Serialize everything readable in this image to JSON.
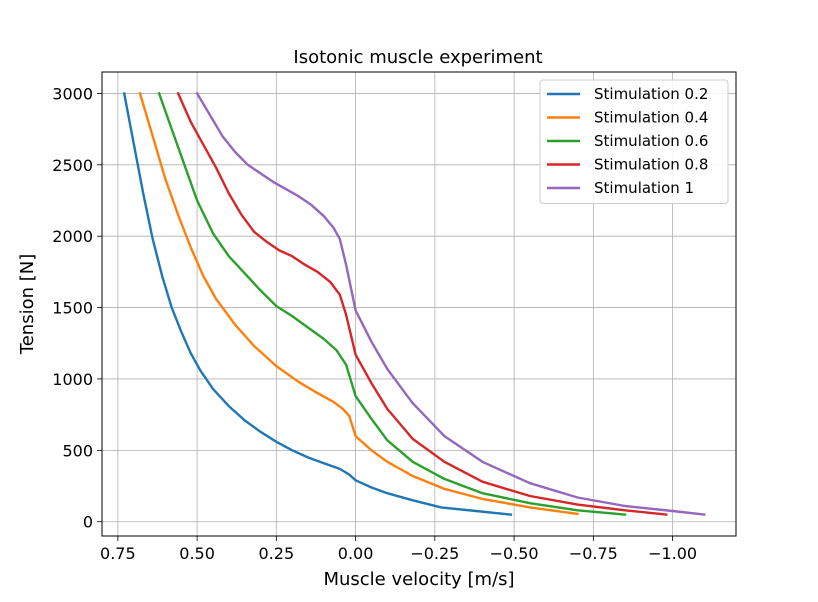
{
  "chart_data": {
    "type": "line",
    "title": "Isotonic muscle experiment",
    "xlabel": "Muscle velocity [m/s]",
    "ylabel": "Tension [N]",
    "xlim": [
      0.8,
      -1.2
    ],
    "x_inverted": true,
    "ylim": [
      -100,
      3150
    ],
    "xticks": [
      0.75,
      0.5,
      0.25,
      0.0,
      -0.25,
      -0.5,
      -0.75,
      -1.0
    ],
    "xtick_labels": [
      "0.75",
      "0.50",
      "0.25",
      "0.00",
      "−0.25",
      "−0.50",
      "−0.75",
      "−1.00"
    ],
    "yticks": [
      0,
      500,
      1000,
      1500,
      2000,
      2500,
      3000
    ],
    "ytick_labels": [
      "0",
      "500",
      "1000",
      "1500",
      "2000",
      "2500",
      "3000"
    ],
    "grid": true,
    "legend_position": "top-right",
    "series": [
      {
        "name": "Stimulation 0.2",
        "color": "#1f77b4",
        "x": [
          0.73,
          0.7,
          0.67,
          0.64,
          0.61,
          0.58,
          0.55,
          0.52,
          0.49,
          0.45,
          0.4,
          0.35,
          0.3,
          0.25,
          0.2,
          0.15,
          0.1,
          0.05,
          0.02,
          0.0,
          -0.05,
          -0.1,
          -0.18,
          -0.27,
          -0.38,
          -0.49
        ],
        "y": [
          3000,
          2650,
          2300,
          1980,
          1720,
          1500,
          1330,
          1180,
          1060,
          930,
          810,
          710,
          630,
          560,
          500,
          450,
          410,
          370,
          330,
          290,
          240,
          200,
          150,
          100,
          75,
          50
        ]
      },
      {
        "name": "Stimulation 0.4",
        "color": "#ff7f0e",
        "x": [
          0.68,
          0.64,
          0.6,
          0.56,
          0.52,
          0.48,
          0.44,
          0.38,
          0.32,
          0.25,
          0.18,
          0.12,
          0.07,
          0.04,
          0.02,
          0.0,
          -0.05,
          -0.1,
          -0.18,
          -0.28,
          -0.4,
          -0.55,
          -0.7
        ],
        "y": [
          3000,
          2700,
          2400,
          2150,
          1920,
          1720,
          1560,
          1380,
          1230,
          1090,
          980,
          900,
          840,
          790,
          740,
          600,
          500,
          420,
          320,
          230,
          160,
          100,
          55
        ]
      },
      {
        "name": "Stimulation 0.6",
        "color": "#2ca02c",
        "x": [
          0.62,
          0.58,
          0.54,
          0.5,
          0.45,
          0.4,
          0.35,
          0.3,
          0.25,
          0.2,
          0.15,
          0.1,
          0.06,
          0.03,
          0.0,
          -0.05,
          -0.1,
          -0.18,
          -0.28,
          -0.4,
          -0.55,
          -0.7,
          -0.85
        ],
        "y": [
          3000,
          2750,
          2500,
          2250,
          2020,
          1860,
          1740,
          1620,
          1510,
          1440,
          1360,
          1280,
          1200,
          1100,
          880,
          720,
          570,
          420,
          300,
          200,
          130,
          80,
          50
        ]
      },
      {
        "name": "Stimulation 0.8",
        "color": "#d62728",
        "x": [
          0.56,
          0.52,
          0.48,
          0.44,
          0.4,
          0.36,
          0.32,
          0.28,
          0.24,
          0.2,
          0.16,
          0.12,
          0.08,
          0.05,
          0.03,
          0.0,
          -0.05,
          -0.1,
          -0.18,
          -0.28,
          -0.4,
          -0.55,
          -0.7,
          -0.85,
          -0.98
        ],
        "y": [
          3000,
          2800,
          2640,
          2480,
          2300,
          2150,
          2030,
          1960,
          1900,
          1860,
          1800,
          1750,
          1680,
          1590,
          1450,
          1170,
          970,
          790,
          580,
          420,
          280,
          180,
          120,
          80,
          50
        ]
      },
      {
        "name": "Stimulation 1",
        "color": "#9467bd",
        "x": [
          0.5,
          0.46,
          0.42,
          0.38,
          0.34,
          0.3,
          0.26,
          0.22,
          0.18,
          0.14,
          0.1,
          0.07,
          0.05,
          0.03,
          0.0,
          -0.05,
          -0.1,
          -0.18,
          -0.28,
          -0.4,
          -0.55,
          -0.7,
          -0.85,
          -1.0,
          -1.1
        ],
        "y": [
          3000,
          2850,
          2700,
          2590,
          2500,
          2440,
          2380,
          2330,
          2280,
          2220,
          2140,
          2060,
          1980,
          1800,
          1480,
          1260,
          1070,
          830,
          600,
          420,
          270,
          170,
          110,
          75,
          50
        ]
      }
    ]
  }
}
